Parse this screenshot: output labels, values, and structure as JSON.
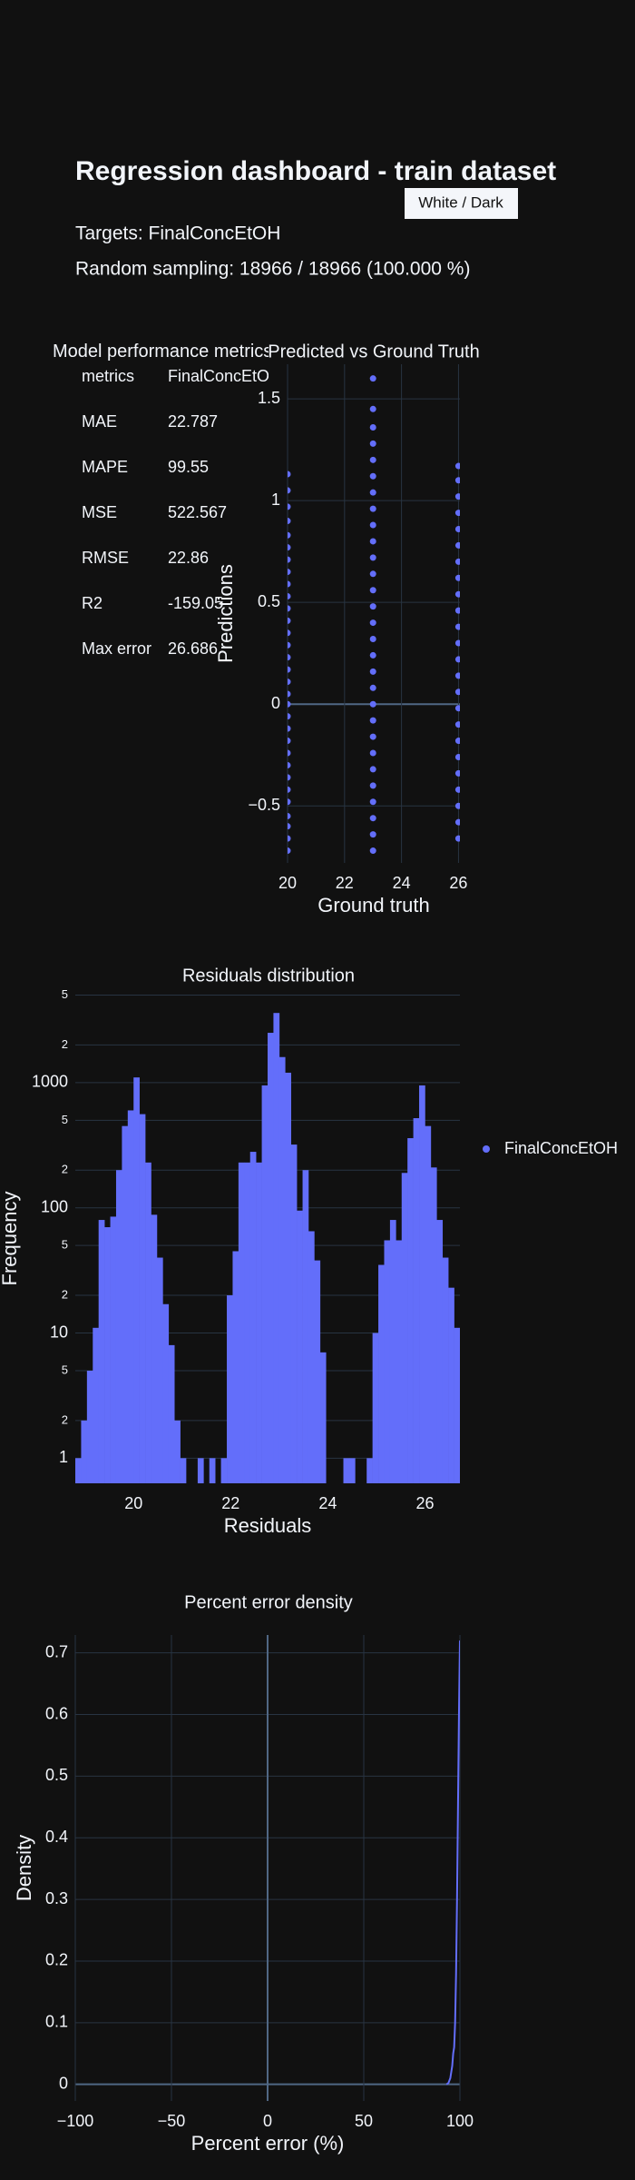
{
  "header": {
    "title": "Regression dashboard - train dataset",
    "button": "White / Dark",
    "targets": "Targets: FinalConcEtOH",
    "sampling": "Random sampling: 18966 / 18966 (100.000 %)"
  },
  "metrics_table": {
    "title": "Model performance metrics",
    "columns": [
      "metrics",
      "FinalConcEtOH"
    ],
    "rows": [
      [
        "MAE",
        22.787
      ],
      [
        "MAPE",
        99.55
      ],
      [
        "MSE",
        522.567
      ],
      [
        "RMSE",
        22.86
      ],
      [
        "R2",
        -159.05
      ],
      [
        "Max error",
        26.686
      ]
    ]
  },
  "chart_data": [
    {
      "type": "scatter",
      "title": "Predicted vs Ground Truth",
      "xlabel": "Ground truth",
      "ylabel": "Predictions",
      "color": "#636efa",
      "x": [
        20,
        20,
        20,
        20,
        20,
        20,
        20,
        20,
        20,
        20,
        20,
        20,
        20,
        20,
        20,
        20,
        20,
        20,
        20,
        20,
        20,
        20,
        20,
        20,
        20,
        20,
        20,
        20,
        20,
        20,
        20,
        23,
        23,
        23,
        23,
        23,
        23,
        23,
        23,
        23,
        23,
        23,
        23,
        23,
        23,
        23,
        23,
        23,
        23,
        23,
        23,
        23,
        23,
        23,
        23,
        23,
        23,
        23,
        23,
        23,
        26,
        26,
        26,
        26,
        26,
        26,
        26,
        26,
        26,
        26,
        26,
        26,
        26,
        26,
        26,
        26,
        26,
        26,
        26,
        26,
        26,
        26,
        26,
        26
      ],
      "values": [
        -0.72,
        -0.66,
        -0.6,
        -0.55,
        -0.48,
        -0.42,
        -0.36,
        -0.3,
        -0.24,
        -0.18,
        -0.12,
        -0.06,
        0,
        0.05,
        0.11,
        0.17,
        0.23,
        0.29,
        0.35,
        0.41,
        0.47,
        0.53,
        0.59,
        0.65,
        0.71,
        0.77,
        0.83,
        0.9,
        0.97,
        1.05,
        1.13,
        -0.72,
        -0.64,
        -0.56,
        -0.48,
        -0.4,
        -0.32,
        -0.24,
        -0.16,
        -0.08,
        0,
        0.08,
        0.16,
        0.24,
        0.32,
        0.4,
        0.48,
        0.56,
        0.64,
        0.72,
        0.8,
        0.88,
        0.96,
        1.04,
        1.12,
        1.2,
        1.28,
        1.36,
        1.45,
        1.6,
        -0.66,
        -0.58,
        -0.5,
        -0.42,
        -0.34,
        -0.26,
        -0.18,
        -0.1,
        -0.02,
        0.06,
        0.14,
        0.22,
        0.3,
        0.38,
        0.46,
        0.54,
        0.62,
        0.7,
        0.78,
        0.86,
        0.94,
        1.02,
        1.1,
        1.17
      ],
      "xlim": [
        20,
        26.05
      ],
      "ylim": [
        -0.78,
        1.67
      ],
      "xticks": [
        20,
        22,
        24,
        26
      ],
      "yticks": [
        {
          "value": -0.5,
          "label": "−0.5"
        },
        0,
        0.5,
        1,
        1.5
      ],
      "grid": "both"
    },
    {
      "type": "histogram",
      "title": "Residuals distribution",
      "xlabel": "Residuals",
      "ylabel": "Frequency",
      "bins": [
        18.8,
        18.92,
        19.04,
        19.16,
        19.28,
        19.4,
        19.52,
        19.64,
        19.76,
        19.88,
        20,
        20.12,
        20.24,
        20.36,
        20.48,
        20.6,
        20.72,
        20.84,
        20.96,
        21.08,
        21.2,
        21.32,
        21.44,
        21.56,
        21.68,
        21.8,
        21.92,
        22.04,
        22.16,
        22.28,
        22.4,
        22.52,
        22.64,
        22.76,
        22.88,
        23,
        23.12,
        23.24,
        23.36,
        23.48,
        23.6,
        23.72,
        23.84,
        23.96,
        24.08,
        24.2,
        24.32,
        24.44,
        24.56,
        24.68,
        24.8,
        24.92,
        25.04,
        25.16,
        25.28,
        25.4,
        25.52,
        25.64,
        25.76,
        25.88,
        26,
        26.12,
        26.24,
        26.36,
        26.48,
        26.6,
        26.72
      ],
      "series": [
        {
          "name": "FinalConcEtOH",
          "color": "#636efa",
          "values": [
            1,
            2,
            5,
            11,
            80,
            70,
            85,
            200,
            450,
            600,
            1100,
            560,
            230,
            88,
            40,
            17,
            8,
            2,
            1,
            0,
            0,
            1,
            0,
            1,
            0,
            1,
            20,
            45,
            230,
            230,
            280,
            230,
            950,
            2500,
            3600,
            1600,
            1200,
            320,
            95,
            200,
            65,
            38,
            7,
            0,
            0,
            0,
            1,
            1,
            0,
            0,
            1,
            10,
            35,
            55,
            80,
            55,
            190,
            360,
            520,
            950,
            450,
            210,
            80,
            40,
            23,
            11
          ]
        }
      ],
      "xlim": [
        18.8,
        26.72
      ],
      "ylim": [
        0.63,
        5130
      ],
      "log_y": true,
      "xticks": [
        20,
        22,
        24,
        26
      ],
      "yticks": [
        1,
        2,
        5,
        10,
        {
          "value": 20,
          "label": "2"
        },
        {
          "value": 50,
          "label": "5"
        },
        100,
        {
          "value": 200,
          "label": "2"
        },
        {
          "value": 500,
          "label": "5"
        },
        1000,
        {
          "value": 2000,
          "label": "2"
        },
        {
          "value": 5000,
          "label": "5"
        }
      ],
      "grid": "y",
      "legend": "right"
    },
    {
      "type": "line",
      "title": "Percent error density",
      "xlabel": "Percent error (%)",
      "ylabel": "Density",
      "color": "#636efa",
      "x": [
        93,
        94,
        95,
        96,
        96.5,
        97,
        97.5,
        98,
        98.5,
        99,
        99.5,
        100
      ],
      "values": [
        0,
        0.002,
        0.01,
        0.03,
        0.05,
        0.06,
        0.1,
        0.18,
        0.3,
        0.45,
        0.6,
        0.72
      ],
      "xlim": [
        -100,
        100
      ],
      "ylim": [
        -0.027,
        0.729
      ],
      "xticks": [
        {
          "value": -100,
          "label": "−100"
        },
        {
          "value": -50,
          "label": "−50"
        },
        0,
        50,
        100
      ],
      "yticks": [
        0,
        0.1,
        0.2,
        0.3,
        0.4,
        0.5,
        0.6,
        0.7
      ],
      "grid": "both"
    }
  ]
}
